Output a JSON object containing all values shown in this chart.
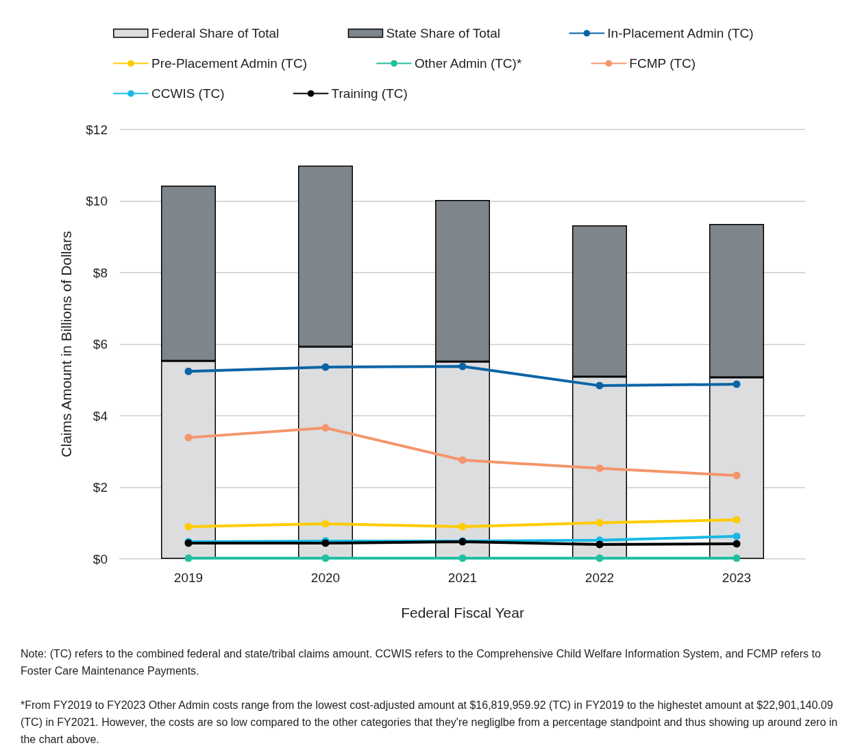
{
  "chart_data": {
    "type": "bar",
    "stacked": true,
    "xlabel": "Federal Fiscal Year",
    "ylabel": "Claims Amount in Billions of Dollars",
    "categories": [
      "2019",
      "2020",
      "2021",
      "2022",
      "2023"
    ],
    "ylim": [
      0,
      12
    ],
    "yticks": [
      {
        "value": 0,
        "label": "$0"
      },
      {
        "value": 2,
        "label": "$2"
      },
      {
        "value": 4,
        "label": "$4"
      },
      {
        "value": 6,
        "label": "$6"
      },
      {
        "value": 8,
        "label": "$8"
      },
      {
        "value": 10,
        "label": "$10"
      },
      {
        "value": 12,
        "label": "$12"
      }
    ],
    "grid": "y",
    "legend": "top",
    "marker": "circle",
    "line_style": "solid",
    "series": [
      {
        "name": "Federal Share of Total",
        "color": "#dcdddf",
        "values": [
          5.53,
          5.93,
          5.51,
          5.09,
          5.07
        ]
      },
      {
        "name": "State Share of Total",
        "color": "#7f868b",
        "values": [
          4.9,
          5.06,
          4.52,
          4.23,
          4.29
        ]
      },
      {
        "name": "In-Placement Admin (TC)",
        "type": "line",
        "color": "#0b64a4",
        "values": [
          5.24,
          5.36,
          5.38,
          4.84,
          4.88
        ]
      },
      {
        "name": "Pre-Placement Admin (TC)",
        "type": "line",
        "color": "#ffcc00",
        "values": [
          0.9,
          0.98,
          0.9,
          1.01,
          1.09
        ]
      },
      {
        "name": "Other Admin (TC)*",
        "type": "line",
        "color": "#20c0a0",
        "values": [
          0.02,
          0.02,
          0.02,
          0.02,
          0.02
        ]
      },
      {
        "name": "FCMP (TC)",
        "type": "line",
        "color": "#f4956b",
        "values": [
          3.39,
          3.66,
          2.76,
          2.53,
          2.33
        ]
      },
      {
        "name": "CCWIS (TC)",
        "type": "line",
        "color": "#1ab8e6",
        "values": [
          0.48,
          0.5,
          0.5,
          0.52,
          0.63
        ]
      },
      {
        "name": "Training (TC)",
        "type": "line",
        "color": "#000000",
        "values": [
          0.44,
          0.44,
          0.48,
          0.4,
          0.42
        ]
      }
    ],
    "annotations": [
      "Note: (TC) refers to the combined federal and state/tribal claims amount. CCWIS refers to the Comprehensive Child Welfare Information System, and FCMP refers to Foster Care Maintenance Payments.",
      "*From FY2019 to FY2023 Other Admin costs range from the lowest cost-adjusted amount at $16,819,959.92 (TC) in FY2019 to the highestet amount at $22,901,140.09 (TC) in FY2021. However, the costs are so low compared to the other categories that they're negliglbe from a percentage standpoint and thus showing up around zero in the chart above."
    ]
  }
}
